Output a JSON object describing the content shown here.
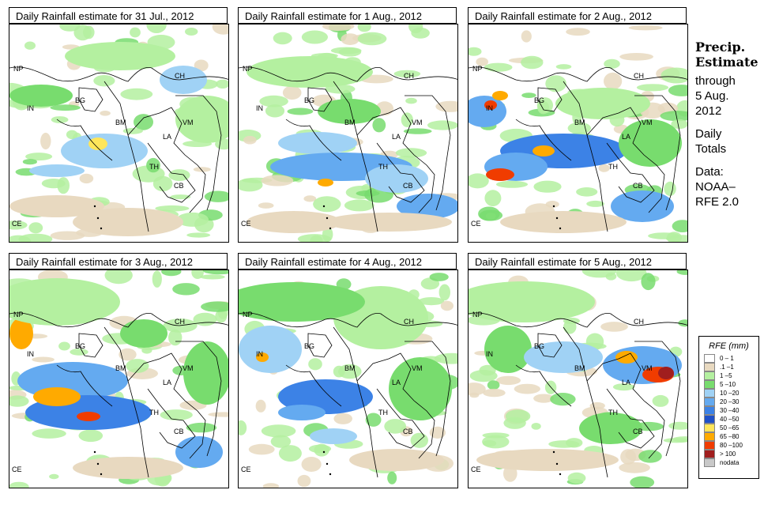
{
  "panels": [
    {
      "title": "Daily Rainfall estimate for  31 Jul., 2012"
    },
    {
      "title": "Daily Rainfall estimate for  1 Aug., 2012"
    },
    {
      "title": "Daily Rainfall estimate for  2 Aug., 2012"
    },
    {
      "title": "Daily Rainfall estimate for  3 Aug., 2012"
    },
    {
      "title": "Daily Rainfall estimate for  4 Aug., 2012"
    },
    {
      "title": "Daily Rainfall estimate for  5 Aug., 2012"
    }
  ],
  "country_labels": {
    "np": "NP",
    "ch": "CH",
    "in": "IN",
    "bg": "BG",
    "bm": "BM",
    "vm": "VM",
    "la": "LA",
    "th": "TH",
    "cb": "CB",
    "ce": "CE"
  },
  "side_text": {
    "heading_line1": "Precip.",
    "heading_line2": "Estimate",
    "through": "through",
    "date_line1": "5 Aug.",
    "date_line2": "2012",
    "daily": "Daily",
    "totals": "Totals",
    "data_line1": "Data:",
    "data_line2": "NOAA–",
    "data_line3": "RFE 2.0"
  },
  "legend": {
    "title": "RFE (mm)",
    "items": [
      {
        "label": "0 – 1",
        "color": "#ffffff"
      },
      {
        "label": ".1 –1",
        "color": "#e8d9c0"
      },
      {
        "label": "1 –5",
        "color": "#b4f0a0"
      },
      {
        "label": "5 –10",
        "color": "#78dc6e"
      },
      {
        "label": "10 –20",
        "color": "#a0d2f5"
      },
      {
        "label": "20 –30",
        "color": "#64aaf0"
      },
      {
        "label": "30 –40",
        "color": "#3c82e6"
      },
      {
        "label": "40 –50",
        "color": "#1e50c8"
      },
      {
        "label": "50 –65",
        "color": "#ffe65a"
      },
      {
        "label": "65 –80",
        "color": "#ffaa00"
      },
      {
        "label": "80 –100",
        "color": "#f03c00"
      },
      {
        "label": "> 100",
        "color": "#a01e1e"
      },
      {
        "label": "nodata",
        "color": "#c8c8c8"
      }
    ]
  }
}
